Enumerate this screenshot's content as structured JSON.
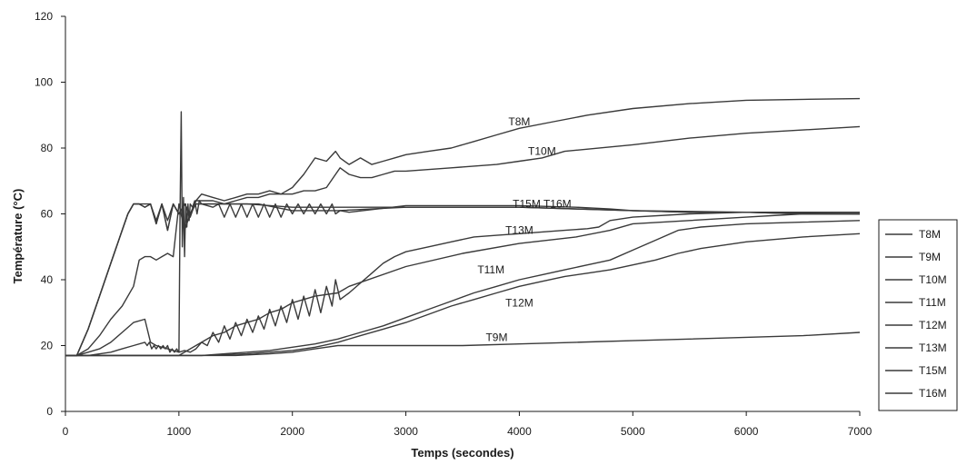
{
  "chart_data": {
    "type": "line",
    "title": "",
    "xlabel": "Temps (secondes)",
    "ylabel": "Température (°C)",
    "xlim": [
      0,
      7000
    ],
    "ylim": [
      0,
      120
    ],
    "xticks": [
      0,
      1000,
      2000,
      3000,
      4000,
      5000,
      6000,
      7000
    ],
    "yticks": [
      0,
      20,
      40,
      60,
      80,
      100,
      120
    ],
    "grid": false,
    "legend_position": "right",
    "line_color": "#3a3a3a",
    "series": [
      {
        "name": "T8M",
        "x": [
          0,
          100,
          200,
          300,
          400,
          500,
          550,
          600,
          650,
          700,
          750,
          800,
          850,
          900,
          950,
          1000,
          1050,
          1100,
          1150,
          1200,
          1300,
          1400,
          1500,
          1600,
          1700,
          1800,
          1900,
          2000,
          2100,
          2200,
          2300,
          2380,
          2420,
          2500,
          2600,
          2700,
          2800,
          2900,
          3000,
          3200,
          3400,
          3600,
          3800,
          4000,
          4300,
          4600,
          5000,
          5500,
          6000,
          6500,
          7000
        ],
        "y": [
          17,
          17,
          25,
          35,
          45,
          55,
          60,
          63,
          63,
          62,
          63,
          57,
          63,
          55,
          63,
          60,
          63,
          59,
          64,
          66,
          65,
          64,
          65,
          66,
          66,
          67,
          66,
          68,
          72,
          77,
          76,
          79,
          77,
          75,
          77,
          75,
          76,
          77,
          78,
          79,
          80,
          82,
          84,
          86,
          88,
          90,
          92,
          93.5,
          94.5,
          94.8,
          95
        ]
      },
      {
        "name": "T9M",
        "x": [
          0,
          500,
          1000,
          1500,
          1800,
          2000,
          2100,
          2200,
          2300,
          2400,
          2500,
          3000,
          3500,
          4000,
          4500,
          5000,
          5500,
          6000,
          6500,
          7000
        ],
        "y": [
          17,
          17,
          17,
          17,
          17.5,
          18,
          18.5,
          19,
          19.5,
          20,
          20,
          20,
          20,
          20.5,
          21,
          21.5,
          22,
          22.5,
          23,
          24
        ]
      },
      {
        "name": "T10M",
        "x": [
          0,
          100,
          200,
          300,
          400,
          500,
          550,
          600,
          650,
          700,
          750,
          800,
          850,
          900,
          950,
          1000,
          1050,
          1100,
          1150,
          1200,
          1300,
          1400,
          1500,
          1600,
          1700,
          1800,
          1900,
          2000,
          2100,
          2200,
          2300,
          2380,
          2420,
          2500,
          2600,
          2700,
          2800,
          2900,
          3000,
          3400,
          3800,
          4000,
          4200,
          4400,
          5000,
          5500,
          6000,
          6500,
          7000
        ],
        "y": [
          17,
          17,
          25,
          35,
          45,
          55,
          60,
          63,
          63,
          62,
          63,
          57,
          63,
          55,
          63,
          60,
          63,
          60,
          64,
          64,
          64,
          63,
          64,
          65,
          65,
          66,
          66,
          66,
          67,
          67,
          68,
          72,
          74,
          72,
          71,
          71,
          72,
          73,
          73,
          74,
          75,
          76,
          77,
          79,
          81,
          83,
          84.5,
          85.5,
          86.5
        ]
      },
      {
        "name": "T11M",
        "x": [
          0,
          500,
          1000,
          1200,
          1400,
          1600,
          1800,
          2000,
          2200,
          2400,
          2600,
          2800,
          3000,
          3200,
          3400,
          3600,
          3800,
          4000,
          4200,
          4400,
          4600,
          4800,
          5000,
          5200,
          5400,
          5600,
          5800,
          6000,
          6500,
          7000
        ],
        "y": [
          17,
          17,
          17,
          17,
          17.5,
          18,
          18.5,
          19.5,
          20.5,
          22,
          24,
          26,
          28.5,
          31,
          33.5,
          36,
          38,
          40,
          41.5,
          43,
          44.5,
          46,
          49,
          52,
          55,
          56,
          56.5,
          57,
          57.5,
          58
        ]
      },
      {
        "name": "T12M",
        "x": [
          0,
          500,
          1000,
          1200,
          1400,
          1600,
          1800,
          2000,
          2200,
          2400,
          2600,
          2800,
          3000,
          3200,
          3400,
          3600,
          3800,
          4000,
          4200,
          4400,
          4600,
          4800,
          5000,
          5200,
          5400,
          5600,
          5800,
          6000,
          6500,
          7000
        ],
        "y": [
          17,
          17,
          17,
          17,
          17.2,
          17.5,
          18,
          18.5,
          19.5,
          21,
          23,
          25,
          27,
          29.5,
          32,
          34,
          36,
          38,
          39.5,
          41,
          42,
          43,
          44.5,
          46,
          48,
          49.5,
          50.5,
          51.5,
          53,
          54
        ]
      },
      {
        "name": "T13M",
        "x": [
          0,
          500,
          1000,
          1100,
          1200,
          1250,
          1300,
          1350,
          1400,
          1450,
          1500,
          1550,
          1600,
          1650,
          1700,
          1750,
          1800,
          1850,
          1900,
          1950,
          2000,
          2050,
          2100,
          2150,
          2200,
          2250,
          2300,
          2350,
          2380,
          2420,
          2500,
          2600,
          2700,
          2800,
          2900,
          3000,
          3200,
          3400,
          3600,
          3800,
          4000,
          4200,
          4400,
          4600,
          4700,
          4800,
          5000,
          5500,
          6000,
          6500,
          7000
        ],
        "y": [
          17,
          17,
          17,
          19,
          21,
          20,
          24,
          21,
          26,
          22,
          27,
          23,
          28,
          24,
          29,
          25,
          31,
          26,
          32,
          27,
          34,
          28,
          35,
          29,
          37,
          30,
          38,
          32,
          40,
          34,
          36,
          39,
          42,
          45,
          47,
          48.5,
          50,
          51.5,
          53,
          53.5,
          54,
          54.5,
          55,
          55.5,
          56,
          58,
          59,
          60,
          60.5,
          60.5,
          60.5
        ]
      },
      {
        "name": "T15M",
        "x": [
          0,
          100,
          200,
          300,
          400,
          500,
          550,
          600,
          650,
          700,
          750,
          800,
          850,
          900,
          950,
          1000,
          1050,
          1100,
          1150,
          1200,
          1300,
          1350,
          1400,
          1450,
          1500,
          1550,
          1600,
          1650,
          1700,
          1750,
          1800,
          1850,
          1900,
          1950,
          2000,
          2050,
          2100,
          2150,
          2200,
          2250,
          2300,
          2350,
          2380,
          2420,
          2500,
          3000,
          3500,
          4000,
          4500,
          4800,
          5000,
          5500,
          6000,
          6500,
          7000
        ],
        "y": [
          17,
          17,
          25,
          35,
          45,
          55,
          60,
          63,
          63,
          63,
          63,
          58,
          63,
          58,
          63,
          60,
          63,
          60,
          63,
          63,
          62,
          63,
          59,
          63,
          59,
          63,
          59,
          63,
          59,
          63,
          59,
          63,
          59,
          63,
          60,
          63,
          60,
          63,
          60,
          63,
          60,
          63,
          60,
          61,
          60.5,
          62.5,
          62.5,
          62.5,
          62,
          61.5,
          61,
          60.5,
          60.5,
          60,
          60
        ]
      },
      {
        "name": "T16M",
        "x": [
          0,
          100,
          200,
          300,
          400,
          500,
          600,
          700,
          750,
          800,
          850,
          900,
          950,
          1000,
          1050,
          1100,
          1150,
          1200,
          1300,
          1400,
          1500,
          1600,
          1700,
          1800,
          1900,
          2000,
          2200,
          2400,
          2500,
          3000,
          3500,
          4000,
          4500,
          4800,
          5000,
          5500,
          6000,
          6500,
          7000
        ],
        "y": [
          17,
          17,
          18,
          19,
          21,
          24,
          27,
          28,
          21,
          20,
          19.5,
          19,
          18.5,
          18,
          18.5,
          18,
          19,
          21,
          23,
          24,
          26,
          27,
          28,
          30,
          31,
          33,
          35,
          36,
          38,
          44,
          48,
          51,
          53,
          55,
          57,
          58,
          59,
          60,
          60
        ]
      },
      {
        "name": "",
        "x": [
          0,
          100,
          200,
          300,
          400,
          500,
          600,
          650,
          700,
          750,
          800,
          850,
          900,
          950,
          1000,
          1050,
          1100,
          1150,
          1200,
          1300,
          1400,
          1500,
          1700,
          2000,
          2400,
          3000,
          3500,
          4000,
          4500,
          5000,
          5500,
          6000,
          6500,
          7000
        ],
        "y": [
          17,
          17,
          19,
          23,
          28,
          32,
          38,
          46,
          47,
          47,
          46,
          47,
          48,
          47,
          63,
          55,
          60,
          63,
          63,
          63,
          63,
          63,
          63,
          61,
          61,
          62,
          62,
          62,
          61.5,
          61,
          60.5,
          60.5,
          60,
          60
        ]
      },
      {
        "name": "",
        "x": [
          0,
          200,
          400,
          500,
          600,
          700,
          720,
          740,
          760,
          780,
          800,
          820,
          840,
          860,
          880,
          900,
          920,
          940,
          960,
          980,
          1000,
          1010,
          1020,
          1030,
          1040,
          1050,
          1060,
          1070,
          1080,
          1090,
          1100,
          1120,
          1140,
          1160,
          1180,
          1200,
          1300,
          1400,
          1600,
          2000,
          2500,
          3000,
          4000,
          5000,
          6000,
          7000
        ],
        "y": [
          17,
          17,
          18,
          19,
          20,
          21,
          20,
          21,
          19,
          20,
          19,
          20,
          19,
          20,
          19,
          20,
          18,
          19,
          18,
          19,
          18,
          60,
          91,
          50,
          65,
          47,
          63,
          56,
          63,
          58,
          63,
          62,
          64,
          60,
          64,
          63,
          63,
          63,
          63,
          62,
          62,
          62,
          62,
          61,
          60.5,
          60
        ]
      }
    ],
    "annotations": [
      {
        "text": "T8M",
        "x": 4000,
        "y": 88
      },
      {
        "text": "T10M",
        "x": 4200,
        "y": 79
      },
      {
        "text": "T15M T16M",
        "x": 4200,
        "y": 63
      },
      {
        "text": "T13M",
        "x": 4000,
        "y": 55
      },
      {
        "text": "T11M",
        "x": 3750,
        "y": 43
      },
      {
        "text": "T12M",
        "x": 4000,
        "y": 33
      },
      {
        "text": "T9M",
        "x": 3800,
        "y": 22.5
      }
    ]
  }
}
